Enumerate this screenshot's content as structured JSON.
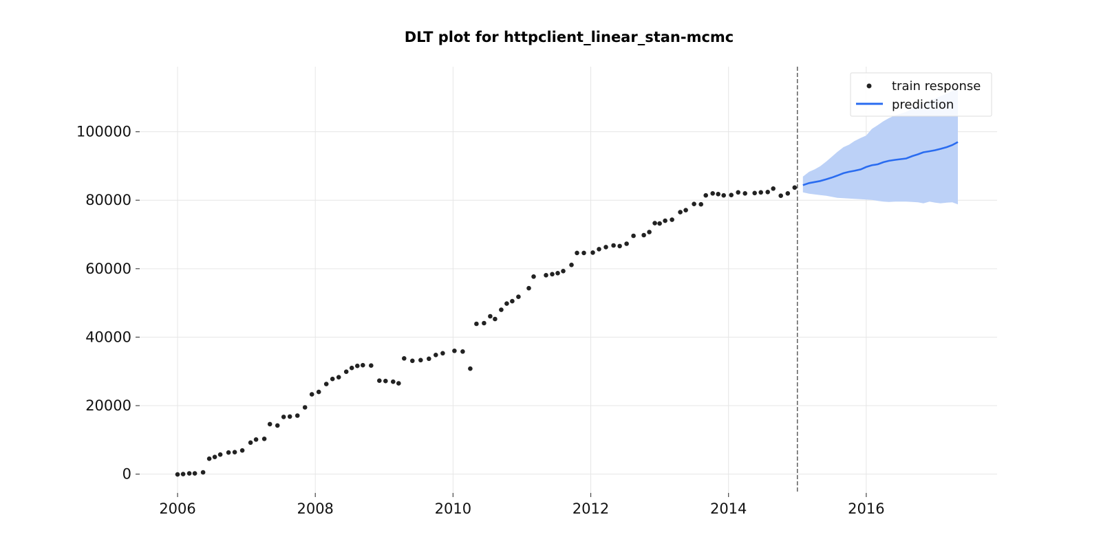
{
  "chart_data": {
    "type": "scatter",
    "title": "DLT plot for httpclient_linear_stan-mcmc",
    "xlabel": "",
    "ylabel": "",
    "xlim": [
      2005.45,
      2017.9
    ],
    "ylim": [
      -5500,
      119000
    ],
    "x_ticks": [
      "2006",
      "2008",
      "2010",
      "2012",
      "2014",
      "2016"
    ],
    "y_ticks": [
      "0",
      "20000",
      "40000",
      "60000",
      "80000",
      "100000"
    ],
    "grid": true,
    "legend_position": "top-right",
    "split_date": 2015.0,
    "colors": {
      "train": "#222222",
      "prediction": "#2a6cf0",
      "band": "#bcd1f7",
      "split": "#666666"
    },
    "series": [
      {
        "name": "train response",
        "kind": "scatter",
        "x": [
          2006.0,
          2006.08,
          2006.17,
          2006.25,
          2006.37,
          2006.46,
          2006.54,
          2006.62,
          2006.74,
          2006.83,
          2006.94,
          2007.06,
          2007.14,
          2007.26,
          2007.34,
          2007.45,
          2007.54,
          2007.63,
          2007.74,
          2007.85,
          2007.95,
          2008.05,
          2008.16,
          2008.25,
          2008.34,
          2008.45,
          2008.53,
          2008.61,
          2008.69,
          2008.81,
          2008.93,
          2009.02,
          2009.13,
          2009.21,
          2009.29,
          2009.41,
          2009.53,
          2009.65,
          2009.75,
          2009.85,
          2010.02,
          2010.14,
          2010.25,
          2010.34,
          2010.45,
          2010.54,
          2010.61,
          2010.7,
          2010.78,
          2010.86,
          2010.95,
          2011.1,
          2011.17,
          2011.35,
          2011.44,
          2011.52,
          2011.6,
          2011.72,
          2011.8,
          2011.9,
          2012.03,
          2012.12,
          2012.22,
          2012.33,
          2012.42,
          2012.52,
          2012.62,
          2012.77,
          2012.85,
          2012.93,
          2013.0,
          2013.08,
          2013.18,
          2013.3,
          2013.38,
          2013.5,
          2013.6,
          2013.67,
          2013.77,
          2013.85,
          2013.93,
          2014.04,
          2014.14,
          2014.24,
          2014.38,
          2014.47,
          2014.57,
          2014.65,
          2014.76,
          2014.86,
          2014.96
        ],
        "y": [
          -100,
          0,
          200,
          200,
          500,
          4500,
          5000,
          5700,
          6300,
          6400,
          6900,
          9200,
          10100,
          10300,
          14600,
          14200,
          16700,
          16800,
          17100,
          19500,
          23300,
          24000,
          26300,
          27800,
          28300,
          29900,
          31000,
          31600,
          31800,
          31700,
          27300,
          27200,
          27000,
          26500,
          33800,
          33100,
          33300,
          33700,
          34800,
          35300,
          36000,
          35800,
          30800,
          43900,
          44100,
          46100,
          45300,
          48000,
          49800,
          50500,
          51800,
          54300,
          57700,
          58100,
          58400,
          58700,
          59300,
          61100,
          64600,
          64600,
          64700,
          65700,
          66300,
          66800,
          66600,
          67300,
          69600,
          69800,
          70700,
          73300,
          73200,
          74000,
          74300,
          76500,
          77100,
          78900,
          78800,
          81400,
          82000,
          81800,
          81400,
          81500,
          82300,
          82000,
          82100,
          82300,
          82400,
          83400,
          81300,
          82000,
          83700
        ]
      },
      {
        "name": "prediction",
        "kind": "line",
        "x": [
          2015.08,
          2015.17,
          2015.25,
          2015.33,
          2015.42,
          2015.5,
          2015.58,
          2015.67,
          2015.75,
          2015.83,
          2015.92,
          2016.0,
          2016.08,
          2016.17,
          2016.25,
          2016.33,
          2016.42,
          2016.5,
          2016.58,
          2016.67,
          2016.75,
          2016.83,
          2016.92,
          2017.0,
          2017.08,
          2017.17,
          2017.25,
          2017.33
        ],
        "y": [
          84400,
          85000,
          85300,
          85600,
          86100,
          86600,
          87200,
          87900,
          88300,
          88600,
          89000,
          89700,
          90200,
          90500,
          91100,
          91500,
          91800,
          92000,
          92200,
          92900,
          93400,
          94000,
          94300,
          94600,
          95000,
          95500,
          96100,
          97000
        ],
        "upper": [
          86900,
          88300,
          89000,
          89900,
          91300,
          92700,
          94100,
          95500,
          96200,
          97300,
          98200,
          98900,
          100800,
          102000,
          103100,
          104000,
          104800,
          105300,
          105800,
          106800,
          107500,
          108300,
          109000,
          109700,
          110400,
          111100,
          111900,
          113000
        ],
        "lower": [
          82300,
          81900,
          81700,
          81500,
          81300,
          81000,
          80700,
          80600,
          80500,
          80400,
          80300,
          80200,
          80100,
          79800,
          79600,
          79500,
          79600,
          79600,
          79600,
          79500,
          79400,
          79100,
          79600,
          79300,
          79100,
          79300,
          79400,
          78800
        ]
      }
    ]
  }
}
